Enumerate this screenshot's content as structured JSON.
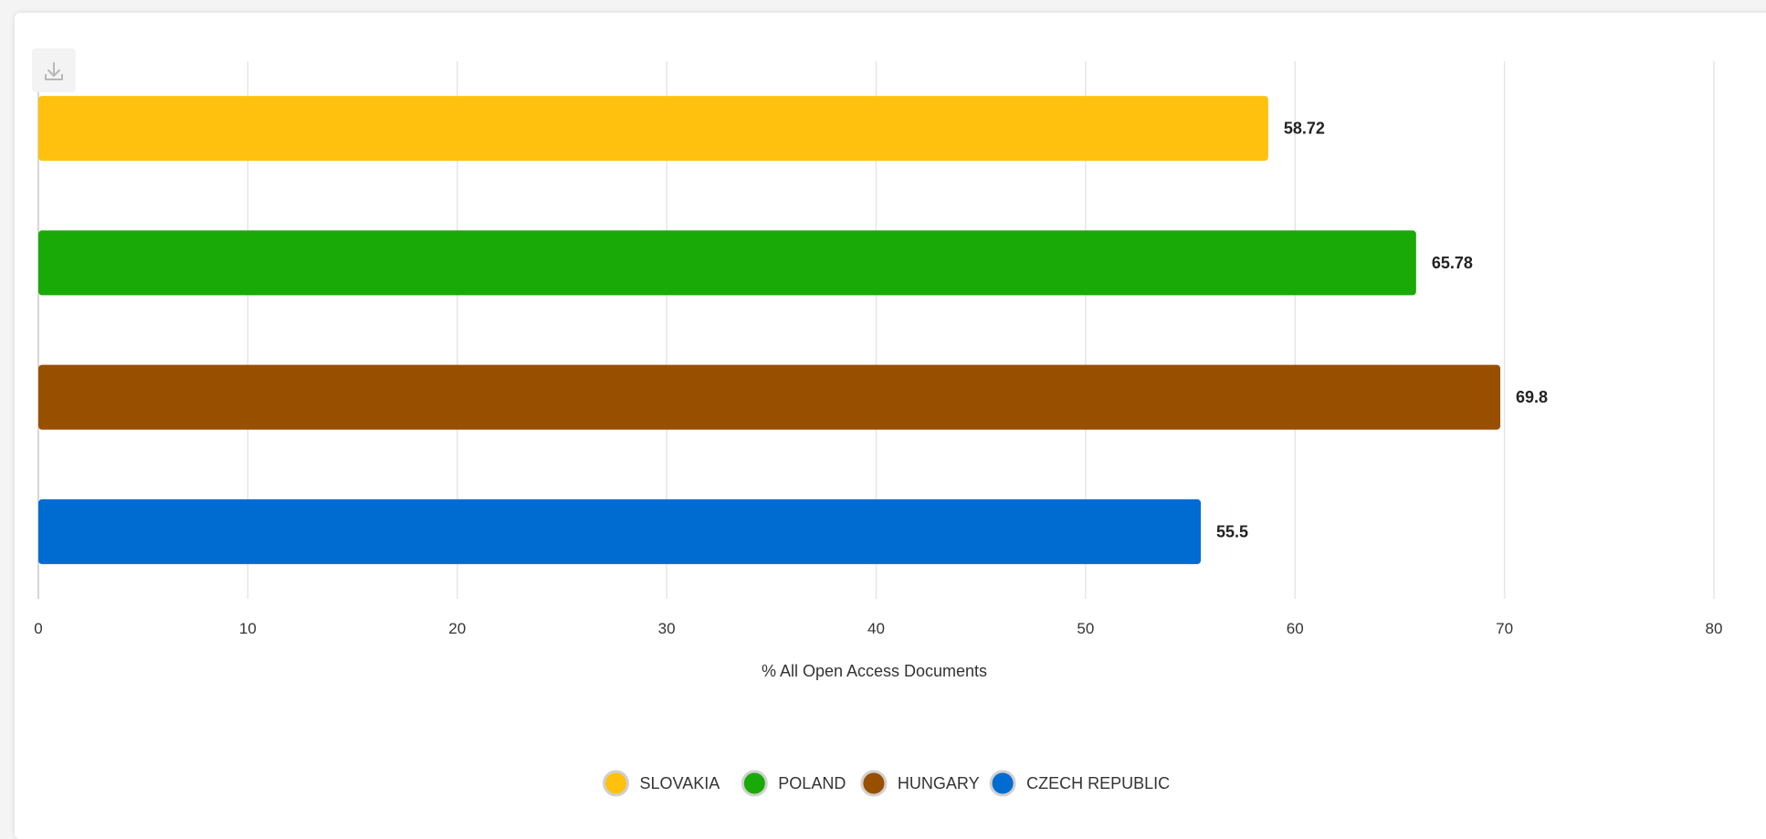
{
  "toolbar": {
    "download_icon": "download-icon"
  },
  "chart_data": {
    "type": "bar",
    "orientation": "horizontal",
    "categories": [
      "SLOVAKIA",
      "POLAND",
      "HUNGARY",
      "CZECH REPUBLIC"
    ],
    "values": [
      58.72,
      65.78,
      69.8,
      55.5
    ],
    "value_labels": [
      "58.72",
      "65.78",
      "69.8",
      "55.5"
    ],
    "colors": [
      "#FFC10E",
      "#1AAA07",
      "#994F00",
      "#006CD1"
    ],
    "xlabel": "% All Open Access Documents",
    "ylabel": "",
    "title": "",
    "xlim": [
      0,
      80
    ],
    "xticks": [
      0,
      10,
      20,
      30,
      40,
      50,
      60,
      70,
      80
    ],
    "xtick_labels": [
      "0",
      "10",
      "20",
      "30",
      "40",
      "50",
      "60",
      "70",
      "80"
    ],
    "grid": true,
    "legend": {
      "placement": "bottom-center",
      "entries": [
        "SLOVAKIA",
        "POLAND",
        "HUNGARY",
        "CZECH REPUBLIC"
      ]
    }
  }
}
